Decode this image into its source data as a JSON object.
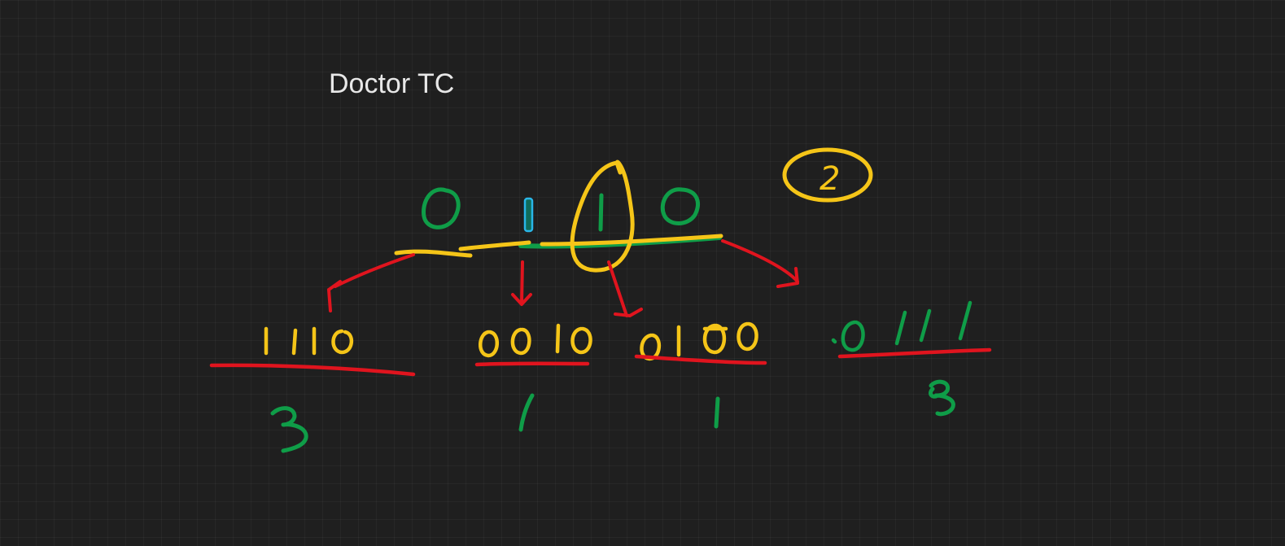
{
  "title": "Doctor TC",
  "colors": {
    "background": "#1f1f1f",
    "title_text": "#e8e8e8",
    "yellow_ink": "#f5c518",
    "green_ink": "#0f9d48",
    "red_ink": "#e0141e",
    "cursor_blue": "#29b6e8"
  },
  "marker": "2"
}
